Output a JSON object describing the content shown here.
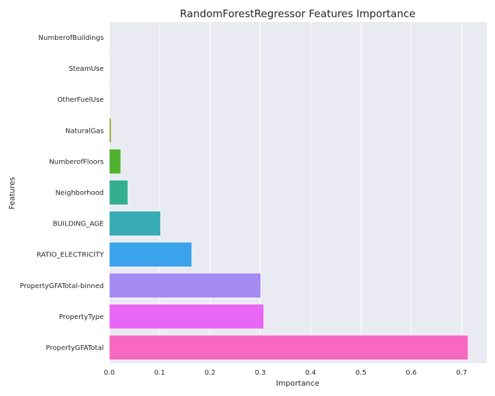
{
  "chart_data": {
    "type": "bar",
    "orientation": "horizontal",
    "title": "RandomForestRegressor Features Importance",
    "xlabel": "Importance",
    "ylabel": "Features",
    "xlim": [
      0.0,
      0.75
    ],
    "xticks": [
      "0.0",
      "0.1",
      "0.2",
      "0.3",
      "0.4",
      "0.5",
      "0.6",
      "0.7"
    ],
    "grid": true,
    "background": "#eaeaf2",
    "categories": [
      "NumberofBuildings",
      "SteamUse",
      "OtherFuelUse",
      "NaturalGas",
      "NumberofFloors",
      "Neighborhood",
      "BUILDING_AGE",
      "RATIO_ELECTRICITY",
      "PropertyGFATotal-binned",
      "PropertyType",
      "PropertyGFATotal"
    ],
    "values": [
      0.0005,
      0.0005,
      0.0005,
      0.004,
      0.023,
      0.037,
      0.102,
      0.164,
      0.301,
      0.307,
      0.713
    ],
    "colors": [
      "#f77189",
      "#e08932",
      "#bb9832",
      "#97a431",
      "#50b131",
      "#34ae91",
      "#37abb4",
      "#3ba3ec",
      "#a48cf4",
      "#e866f4",
      "#f668c2"
    ]
  }
}
